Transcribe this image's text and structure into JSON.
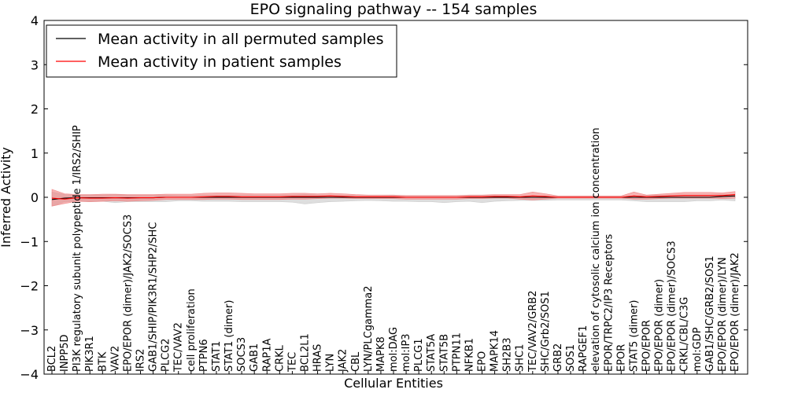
{
  "chart_data": {
    "type": "line",
    "title": "EPO signaling pathway -- 154 samples",
    "xlabel": "Cellular Entities",
    "ylabel": "Inferred Activity",
    "ylim": [
      -4,
      4
    ],
    "yticks": [
      4,
      3,
      2,
      1,
      0,
      -1,
      -2,
      -3,
      -4
    ],
    "ytick_labels": [
      "4",
      "3",
      "2",
      "1",
      "0",
      "−1",
      "−2",
      "−3",
      "−4"
    ],
    "legend_position": "top-left",
    "grid": false,
    "colors": {
      "permuted_line": "#000000",
      "patient_line": "#ff0000",
      "permuted_band": "#c8c8c8",
      "patient_band": "#f08080"
    },
    "categories": [
      "BCL2",
      "INPP5D",
      "PI3K regulatory subunit polypeptide 1/IRS2/SHIP",
      "PIK3R1",
      "BTK",
      "VAV2",
      "EPO/EPOR (dimer)/JAK2/SOCS3",
      "IRS2",
      "GAB1/SHIP/PIK3R1/SHP2/SHC",
      "PLCG2",
      "TEC/VAV2",
      "cell proliferation",
      "PTPN6",
      "STAT1",
      "STAT1 (dimer)",
      "SOCS3",
      "GAB1",
      "RAP1A",
      "CRKL",
      "TEC",
      "BCL2L1",
      "HRAS",
      "LYN",
      "JAK2",
      "CBL",
      "LYN/PLCgamma2",
      "MAPK8",
      "mol:DAG",
      "mol:IP3",
      "PLCG1",
      "STAT5A",
      "STAT5B",
      "PTPN11",
      "NFKB1",
      "EPO",
      "MAPK14",
      "SH2B3",
      "SHC1",
      "TEC/VAV2/GRB2",
      "SHC/Grb2/SOS1",
      "GRB2",
      "SOS1",
      "RAPGEF1",
      "elevation of cytosolic calcium ion concentration",
      "EPOR/TRPC2/IP3 Receptors",
      "EPOR",
      "STAT5 (dimer)",
      "EPO/EPOR",
      "EPO/EPOR (dimer)",
      "EPO/EPOR (dimer)/SOCS3",
      "CRKL/CBL/C3G",
      "mol:GDP",
      "GAB1/SHC/GRB2/SOS1",
      "EPO/EPOR (dimer)/LYN",
      "EPO/EPOR (dimer)/JAK2"
    ],
    "series": [
      {
        "name": "Mean activity in all permuted samples",
        "values": [
          -0.05,
          -0.02,
          -0.01,
          -0.01,
          -0.01,
          -0.01,
          -0.01,
          -0.01,
          -0.01,
          0.0,
          0.0,
          0.0,
          0.0,
          0.0,
          0.0,
          0.0,
          0.0,
          0.0,
          0.0,
          0.0,
          0.0,
          0.0,
          0.0,
          0.0,
          0.0,
          0.0,
          0.0,
          0.0,
          0.0,
          0.0,
          0.0,
          0.0,
          0.0,
          0.0,
          0.0,
          0.0,
          0.0,
          0.0,
          0.0,
          0.0,
          0.0,
          0.0,
          0.0,
          0.0,
          0.0,
          0.0,
          0.0,
          0.0,
          0.0,
          0.0,
          0.0,
          0.0,
          0.0,
          0.02,
          0.03
        ],
        "lower": [
          -0.2,
          -0.1,
          -0.09,
          -0.1,
          -0.09,
          -0.12,
          -0.1,
          -0.1,
          -0.1,
          -0.1,
          -0.08,
          -0.08,
          -0.09,
          -0.09,
          -0.09,
          -0.1,
          -0.1,
          -0.1,
          -0.1,
          -0.11,
          -0.15,
          -0.12,
          -0.1,
          -0.09,
          -0.08,
          -0.07,
          -0.08,
          -0.09,
          -0.09,
          -0.1,
          -0.1,
          -0.12,
          -0.1,
          -0.09,
          -0.12,
          -0.09,
          -0.08,
          -0.07,
          -0.07,
          -0.07,
          -0.06,
          -0.06,
          -0.06,
          -0.06,
          -0.06,
          -0.06,
          -0.08,
          -0.1,
          -0.1,
          -0.1,
          -0.1,
          -0.08,
          -0.08,
          -0.06,
          -0.08
        ],
        "upper": [
          0.12,
          0.06,
          0.05,
          0.05,
          0.05,
          0.06,
          0.05,
          0.05,
          0.05,
          0.05,
          0.04,
          0.04,
          0.05,
          0.05,
          0.05,
          0.05,
          0.05,
          0.05,
          0.05,
          0.05,
          0.06,
          0.05,
          0.04,
          0.04,
          0.04,
          0.03,
          0.03,
          0.04,
          0.04,
          0.04,
          0.04,
          0.04,
          0.04,
          0.04,
          0.04,
          0.04,
          0.03,
          0.03,
          0.03,
          0.03,
          0.02,
          0.02,
          0.02,
          0.02,
          0.02,
          0.02,
          0.03,
          0.04,
          0.05,
          0.05,
          0.05,
          0.05,
          0.05,
          0.06,
          0.06
        ]
      },
      {
        "name": "Mean activity in patient samples",
        "values": [
          -0.02,
          -0.04,
          -0.01,
          -0.02,
          -0.02,
          -0.01,
          -0.02,
          -0.01,
          -0.01,
          0.0,
          0.0,
          0.0,
          0.01,
          0.02,
          0.02,
          0.01,
          0.01,
          0.01,
          0.01,
          0.02,
          0.02,
          0.02,
          0.03,
          0.02,
          0.01,
          0.01,
          0.01,
          0.01,
          0.0,
          0.0,
          0.0,
          0.0,
          0.0,
          0.01,
          0.01,
          0.02,
          0.02,
          0.01,
          0.03,
          0.02,
          0.0,
          0.0,
          0.0,
          0.0,
          0.0,
          0.0,
          0.03,
          0.01,
          0.02,
          0.03,
          0.04,
          0.04,
          0.04,
          0.04,
          0.06
        ],
        "lower": [
          -0.2,
          -0.14,
          -0.09,
          -0.1,
          -0.09,
          -0.08,
          -0.09,
          -0.08,
          -0.07,
          -0.05,
          -0.05,
          -0.05,
          -0.05,
          -0.04,
          -0.04,
          -0.05,
          -0.05,
          -0.05,
          -0.05,
          -0.04,
          -0.04,
          -0.03,
          -0.02,
          -0.02,
          -0.03,
          -0.03,
          -0.03,
          -0.03,
          -0.04,
          -0.04,
          -0.04,
          -0.04,
          -0.04,
          -0.03,
          -0.03,
          -0.02,
          -0.02,
          -0.04,
          -0.06,
          -0.04,
          -0.02,
          -0.02,
          -0.02,
          -0.02,
          -0.02,
          -0.02,
          -0.04,
          -0.04,
          -0.03,
          -0.02,
          -0.02,
          -0.02,
          -0.02,
          -0.03,
          -0.02
        ],
        "upper": [
          0.18,
          0.08,
          0.06,
          0.06,
          0.07,
          0.07,
          0.06,
          0.06,
          0.06,
          0.07,
          0.07,
          0.07,
          0.09,
          0.1,
          0.1,
          0.09,
          0.08,
          0.08,
          0.08,
          0.09,
          0.09,
          0.08,
          0.09,
          0.08,
          0.06,
          0.05,
          0.05,
          0.05,
          0.04,
          0.04,
          0.04,
          0.04,
          0.04,
          0.05,
          0.05,
          0.06,
          0.06,
          0.06,
          0.12,
          0.08,
          0.03,
          0.03,
          0.03,
          0.03,
          0.03,
          0.03,
          0.12,
          0.05,
          0.07,
          0.09,
          0.11,
          0.11,
          0.11,
          0.1,
          0.13
        ]
      }
    ]
  }
}
